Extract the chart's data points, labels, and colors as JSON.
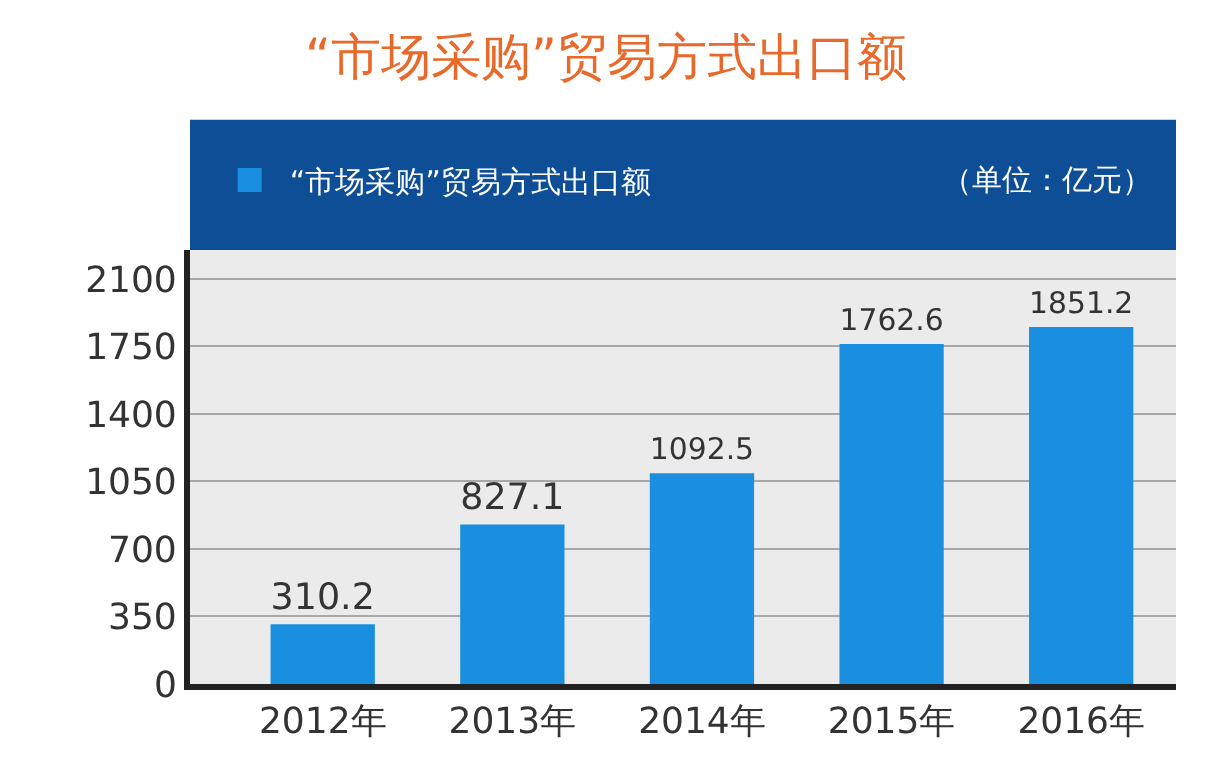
{
  "chart_data": {
    "type": "bar",
    "title": "“市场采购”贸易方式出口额",
    "categories": [
      "2012年",
      "2013年",
      "2014年",
      "2015年",
      "2016年"
    ],
    "series": [
      {
        "name": "“市场采购”贸易方式出口额",
        "color": "#1a8fe0",
        "values": [
          310.2,
          827.1,
          1092.5,
          1762.6,
          1851.2
        ]
      }
    ],
    "ylim": [
      0,
      2250
    ],
    "yticks": [
      0,
      350,
      700,
      1050,
      1400,
      1750,
      2100
    ],
    "grid": "y",
    "legend": "top left",
    "data_labels": true,
    "annotations": [
      "（单位：亿元）"
    ]
  }
}
